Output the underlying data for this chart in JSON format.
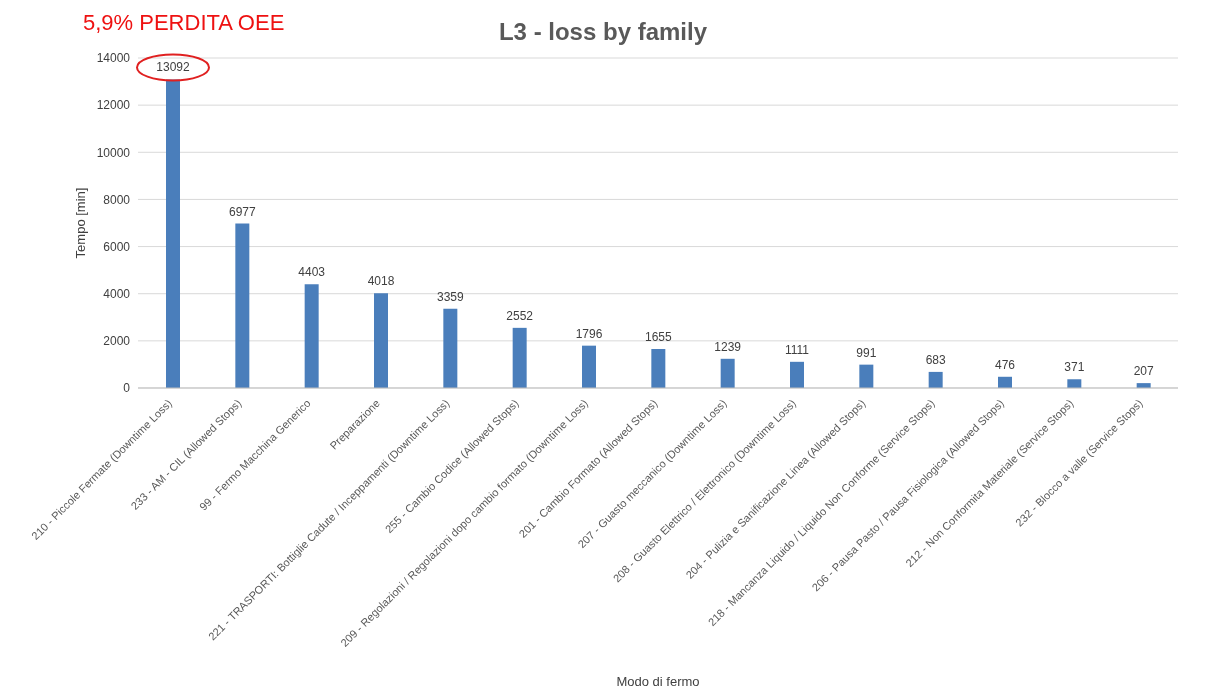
{
  "chart_data": {
    "type": "bar",
    "title": "L3 - loss by family",
    "xlabel": "Modo di fermo",
    "ylabel": "Tempo [min]",
    "annotations": [
      "5,9% PERDITA OEE"
    ],
    "categories": [
      "210 - Piccole Fermate (Downtime Loss)",
      "233 - AM - CIL (Allowed Stops)",
      "99 - Fermo Macchina Generico",
      "Preparazione",
      "221 - TRASPORTI: Bottiglie Cadute / Inceppamenti (Downtime Loss)",
      "255 - Cambio Codice (Allowed Stops)",
      "209 - Regolazioni / Regolazioni dopo cambio formato (Downtime Loss)",
      "201 - Cambio Formato (Allowed Stops)",
      "207 - Guasto meccanico (Downtime Loss)",
      "208 - Guasto Elettrico / Elettronico (Downtime Loss)",
      "204 - Pulizia e Sanificazione Linea (Allowed Stops)",
      "218 - Mancanza Liquido / Liquido Non Conforme (Service Stops)",
      "206 - Pausa Pasto / Pausa Fisiologica (Allowed Stops)",
      "212 - Non Conformita Materiale (Service Stops)",
      "232 - Blocco a valle (Service Stops)"
    ],
    "values": [
      13092,
      6977,
      4403,
      4018,
      3359,
      2552,
      1796,
      1655,
      1239,
      1111,
      991,
      683,
      476,
      371,
      207
    ],
    "color": "#4a7ebb",
    "ylim": [
      0,
      14000
    ],
    "yticks": [
      0,
      2000,
      4000,
      6000,
      8000,
      10000,
      12000,
      14000
    ],
    "grid": "y",
    "data_labels": true
  }
}
